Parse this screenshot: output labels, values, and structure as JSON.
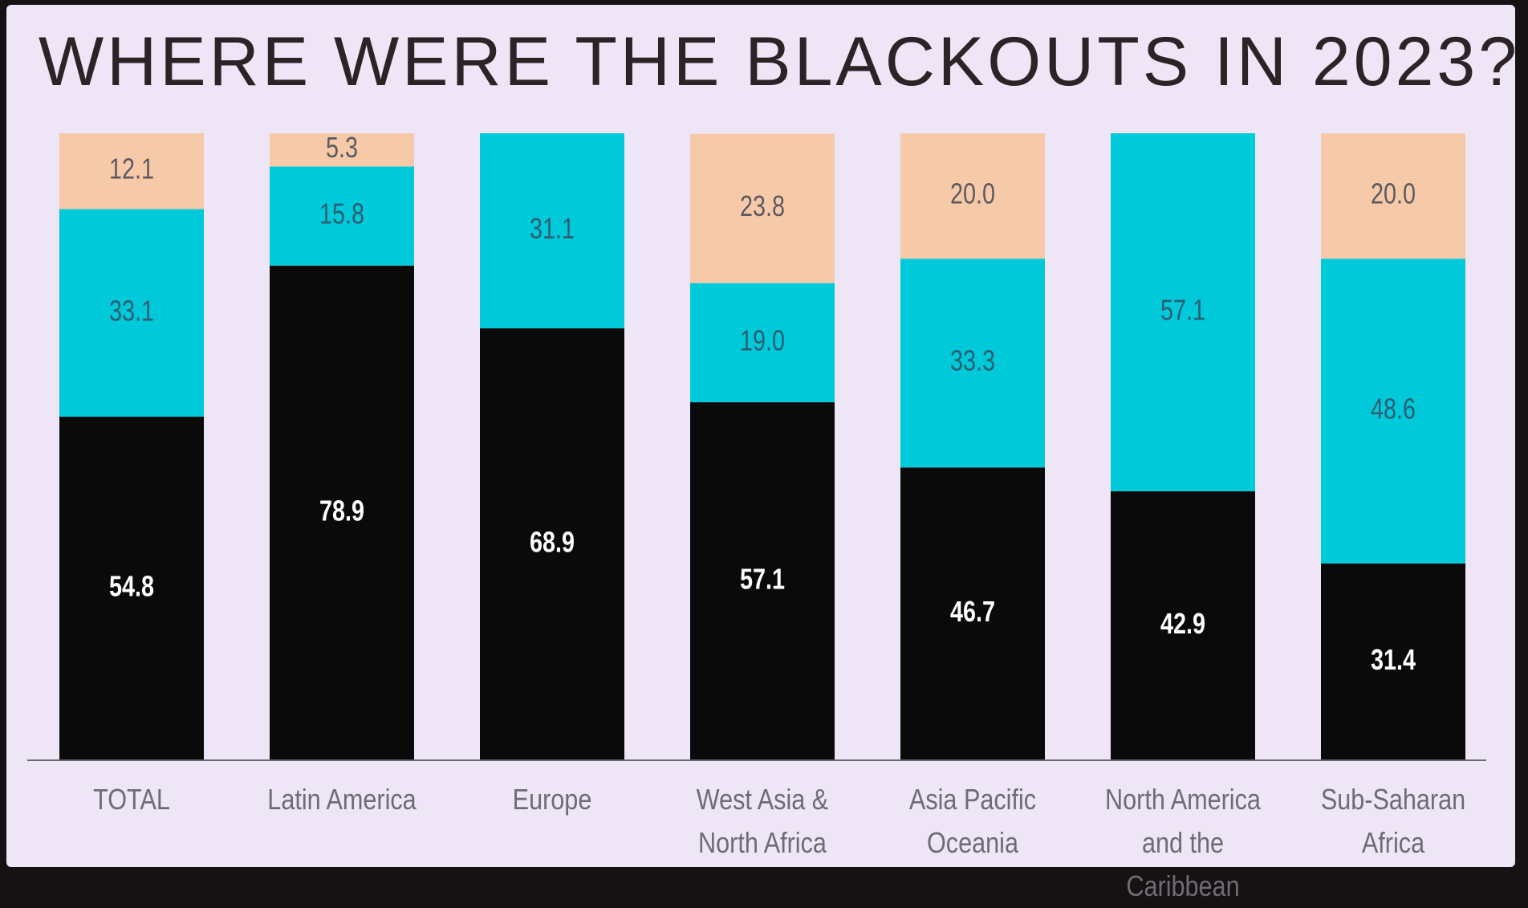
{
  "chart_data": {
    "type": "stacked-bar",
    "title": "WHERE WERE THE BLACKOUTS IN 2023?",
    "categories": [
      "TOTAL",
      "Latin America",
      "Europe",
      "West Asia & North Africa",
      "Asia Pacific Oceania",
      "North America and the Caribbean",
      "Sub-Saharan Africa"
    ],
    "series": [
      {
        "color": "#0b0a0b",
        "values": [
          54.8,
          78.9,
          68.9,
          57.1,
          46.7,
          42.9,
          31.4
        ],
        "value_labels": [
          "54.8",
          "78.9",
          "68.9",
          "57.1",
          "46.7",
          "42.9",
          "31.4"
        ]
      },
      {
        "color": "#00c9d9",
        "values": [
          33.1,
          15.8,
          31.1,
          19.0,
          33.3,
          57.1,
          48.6
        ],
        "value_labels": [
          "33.1",
          "15.8",
          "31.1",
          "19.0",
          "33.3",
          "57.1",
          "48.6"
        ]
      },
      {
        "color": "#f6caa9",
        "values": [
          12.1,
          5.3,
          null,
          23.8,
          20.0,
          null,
          20.0
        ],
        "value_labels": [
          "12.1",
          "5.3",
          null,
          "23.8",
          "20.0",
          null,
          "20.0"
        ]
      }
    ],
    "ylim": [
      0,
      100
    ]
  }
}
